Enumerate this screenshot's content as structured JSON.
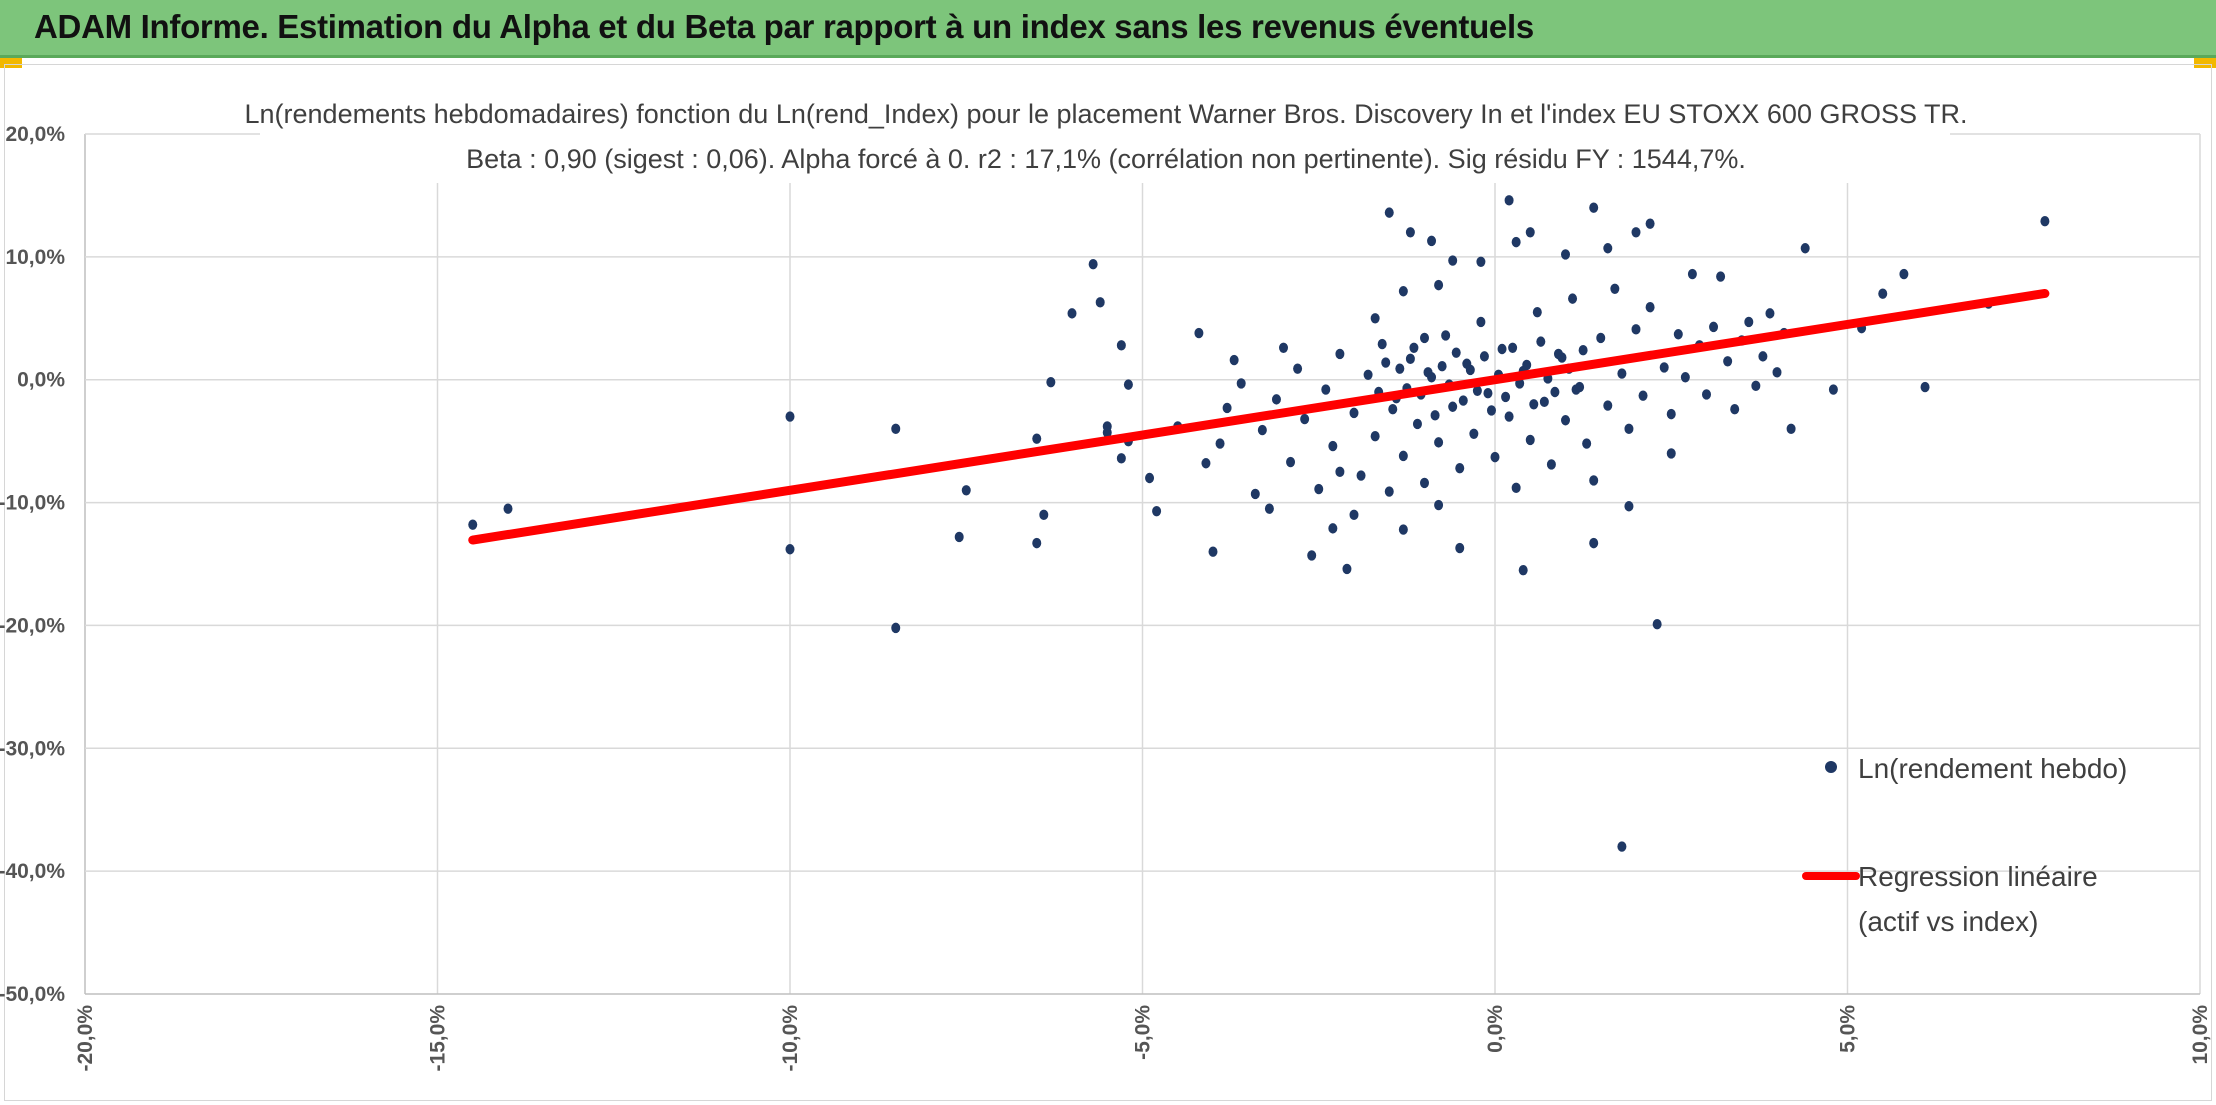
{
  "header": {
    "title": "ADAM Informe. Estimation du Alpha et du Beta par rapport à un index sans les revenus éventuels"
  },
  "colors": {
    "banner": "#7dc57b",
    "points": "#1f3864",
    "regression": "#ff0000",
    "grid": "#d9d9d9"
  },
  "chart_data": {
    "type": "scatter",
    "title_line1": "Ln(rendements hebdomadaires) fonction du Ln(rend_Index) pour le placement Warner Bros. Discovery In et l'index EU STOXX 600 GROSS TR.",
    "title_line2": "Beta : 0,90 (sigest : 0,06). Alpha forcé à 0. r2 : 17,1% (corrélation non pertinente). Sig résidu FY : 1544,7%.",
    "xlim": [
      -20,
      10
    ],
    "ylim": [
      -50,
      20
    ],
    "x_ticks": [
      "-20,0%",
      "-15,0%",
      "-10,0%",
      "-5,0%",
      "0,0%",
      "5,0%",
      "10,0%"
    ],
    "y_ticks": [
      "20,0%",
      "10,0%",
      "0,0%",
      "-10,0%",
      "-20,0%",
      "-30,0%",
      "-40,0%",
      "-50,0%"
    ],
    "grid": true,
    "legend_position": "bottom-right",
    "series": [
      {
        "name": "Ln(rendement hebdo)",
        "type": "scatter",
        "points": [
          [
            -14.5,
            -11.8
          ],
          [
            -14.0,
            -10.5
          ],
          [
            -10.0,
            -3.0
          ],
          [
            -10.0,
            -13.8
          ],
          [
            -8.5,
            -4.0
          ],
          [
            -8.5,
            -20.2
          ],
          [
            -7.6,
            -12.8
          ],
          [
            -7.5,
            -9.0
          ],
          [
            -6.5,
            -4.8
          ],
          [
            -6.5,
            -13.3
          ],
          [
            -6.4,
            -11.0
          ],
          [
            -6.3,
            -0.2
          ],
          [
            -6.0,
            5.4
          ],
          [
            -5.7,
            9.4
          ],
          [
            -5.6,
            6.3
          ],
          [
            -5.5,
            -3.8
          ],
          [
            -5.5,
            -4.3
          ],
          [
            -5.3,
            2.8
          ],
          [
            -5.3,
            -6.4
          ],
          [
            -5.2,
            -0.4
          ],
          [
            -5.2,
            -5.0
          ],
          [
            -4.9,
            -8.0
          ],
          [
            -4.8,
            -10.7
          ],
          [
            -4.2,
            3.8
          ],
          [
            -4.0,
            -14.0
          ],
          [
            -3.7,
            1.6
          ],
          [
            -3.4,
            -9.3
          ],
          [
            -3.2,
            -10.5
          ],
          [
            -3.0,
            2.6
          ],
          [
            -2.6,
            -14.3
          ],
          [
            -2.3,
            -12.1
          ],
          [
            -2.2,
            -7.5
          ],
          [
            -2.1,
            -15.4
          ],
          [
            -2.0,
            -11.0
          ],
          [
            -1.7,
            5.0
          ],
          [
            -1.5,
            13.6
          ],
          [
            -1.3,
            7.2
          ],
          [
            -1.3,
            -12.2
          ],
          [
            -1.2,
            12.0
          ],
          [
            -1.0,
            3.4
          ],
          [
            -0.9,
            11.3
          ],
          [
            -0.8,
            7.7
          ],
          [
            -0.8,
            -10.2
          ],
          [
            -0.6,
            9.7
          ],
          [
            -0.5,
            -13.7
          ],
          [
            -0.2,
            9.6
          ],
          [
            0.2,
            14.6
          ],
          [
            0.3,
            11.2
          ],
          [
            0.5,
            12.0
          ],
          [
            0.4,
            -15.5
          ],
          [
            1.0,
            10.2
          ],
          [
            1.4,
            14.0
          ],
          [
            1.6,
            10.7
          ],
          [
            1.4,
            -8.2
          ],
          [
            1.4,
            -13.3
          ],
          [
            1.9,
            -10.3
          ],
          [
            2.0,
            12.0
          ],
          [
            2.2,
            12.7
          ],
          [
            2.3,
            -19.9
          ],
          [
            2.5,
            -6.0
          ],
          [
            2.8,
            8.6
          ],
          [
            3.2,
            8.4
          ],
          [
            3.6,
            4.7
          ],
          [
            3.7,
            -0.5
          ],
          [
            3.9,
            5.4
          ],
          [
            4.2,
            -4.0
          ],
          [
            4.4,
            10.7
          ],
          [
            4.8,
            -0.8
          ],
          [
            5.2,
            4.2
          ],
          [
            5.5,
            7.0
          ],
          [
            5.8,
            8.6
          ],
          [
            6.1,
            -0.6
          ],
          [
            7.0,
            6.2
          ],
          [
            7.8,
            12.9
          ],
          [
            1.8,
            -38.0
          ],
          [
            -4.5,
            -3.8
          ],
          [
            -4.1,
            -6.8
          ],
          [
            -3.9,
            -5.2
          ],
          [
            -3.8,
            -2.3
          ],
          [
            -3.6,
            -0.3
          ],
          [
            -3.3,
            -4.1
          ],
          [
            -3.1,
            -1.6
          ],
          [
            -2.9,
            -6.7
          ],
          [
            -2.8,
            0.9
          ],
          [
            -2.7,
            -3.2
          ],
          [
            -2.5,
            -8.9
          ],
          [
            -2.4,
            -0.8
          ],
          [
            -2.3,
            -5.4
          ],
          [
            -2.2,
            2.1
          ],
          [
            -2.0,
            -2.7
          ],
          [
            -1.9,
            -7.8
          ],
          [
            -1.8,
            0.4
          ],
          [
            -1.7,
            -4.6
          ],
          [
            -1.6,
            2.9
          ],
          [
            -1.5,
            -9.1
          ],
          [
            -1.4,
            -1.5
          ],
          [
            -1.3,
            -6.2
          ],
          [
            -1.2,
            1.7
          ],
          [
            -1.1,
            -3.6
          ],
          [
            -1.0,
            -8.4
          ],
          [
            -0.9,
            0.2
          ],
          [
            -0.8,
            -5.1
          ],
          [
            -0.7,
            3.6
          ],
          [
            -0.6,
            -2.2
          ],
          [
            -0.5,
            -7.2
          ],
          [
            -0.4,
            1.3
          ],
          [
            -0.3,
            -4.4
          ],
          [
            -0.2,
            4.7
          ],
          [
            -0.1,
            -1.1
          ],
          [
            0.0,
            -6.3
          ],
          [
            0.1,
            2.5
          ],
          [
            0.2,
            -3.0
          ],
          [
            0.3,
            -8.8
          ],
          [
            0.4,
            0.7
          ],
          [
            0.5,
            -4.9
          ],
          [
            0.6,
            5.5
          ],
          [
            0.7,
            -1.8
          ],
          [
            0.8,
            -6.9
          ],
          [
            0.9,
            2.1
          ],
          [
            1.0,
            -3.3
          ],
          [
            1.1,
            6.6
          ],
          [
            1.2,
            -0.6
          ],
          [
            1.3,
            -5.2
          ],
          [
            1.5,
            3.4
          ],
          [
            1.6,
            -2.1
          ],
          [
            1.7,
            7.4
          ],
          [
            1.8,
            0.5
          ],
          [
            1.9,
            -4.0
          ],
          [
            2.0,
            4.1
          ],
          [
            2.1,
            -1.3
          ],
          [
            2.2,
            5.9
          ],
          [
            2.4,
            1.0
          ],
          [
            2.5,
            -2.8
          ],
          [
            2.6,
            3.7
          ],
          [
            2.7,
            0.2
          ],
          [
            2.9,
            2.8
          ],
          [
            3.0,
            -1.2
          ],
          [
            3.1,
            4.3
          ],
          [
            3.3,
            1.5
          ],
          [
            3.4,
            -2.4
          ],
          [
            3.5,
            3.2
          ],
          [
            3.8,
            1.9
          ],
          [
            4.0,
            0.6
          ],
          [
            4.1,
            3.8
          ],
          [
            -0.35,
            0.8
          ],
          [
            -0.25,
            -0.9
          ],
          [
            -0.15,
            1.9
          ],
          [
            -0.05,
            -2.5
          ],
          [
            0.05,
            0.4
          ],
          [
            0.15,
            -1.4
          ],
          [
            0.25,
            2.6
          ],
          [
            0.35,
            -0.3
          ],
          [
            0.45,
            1.2
          ],
          [
            0.55,
            -2.0
          ],
          [
            0.65,
            3.1
          ],
          [
            0.75,
            0.1
          ],
          [
            0.85,
            -1.0
          ],
          [
            0.95,
            1.8
          ],
          [
            1.05,
            0.9
          ],
          [
            1.15,
            -0.8
          ],
          [
            1.25,
            2.4
          ],
          [
            -0.45,
            -1.7
          ],
          [
            -0.55,
            2.2
          ],
          [
            -0.65,
            -0.4
          ],
          [
            -0.75,
            1.1
          ],
          [
            -0.85,
            -2.9
          ],
          [
            -0.95,
            0.6
          ],
          [
            -1.05,
            -1.2
          ],
          [
            -1.15,
            2.6
          ],
          [
            -1.25,
            -0.7
          ],
          [
            -1.35,
            0.9
          ],
          [
            -1.45,
            -2.4
          ],
          [
            -1.55,
            1.4
          ],
          [
            -1.65,
            -1.0
          ]
        ]
      },
      {
        "name": "Regression linéaire (actif vs index)",
        "type": "line",
        "x": [
          -14.5,
          7.8
        ],
        "y": [
          -13.05,
          7.02
        ]
      }
    ],
    "legend": [
      {
        "label": "Ln(rendement hebdo)",
        "marker": "dot"
      },
      {
        "label": "Regression linéaire",
        "label_line2": "(actif vs index)",
        "marker": "line"
      }
    ]
  }
}
